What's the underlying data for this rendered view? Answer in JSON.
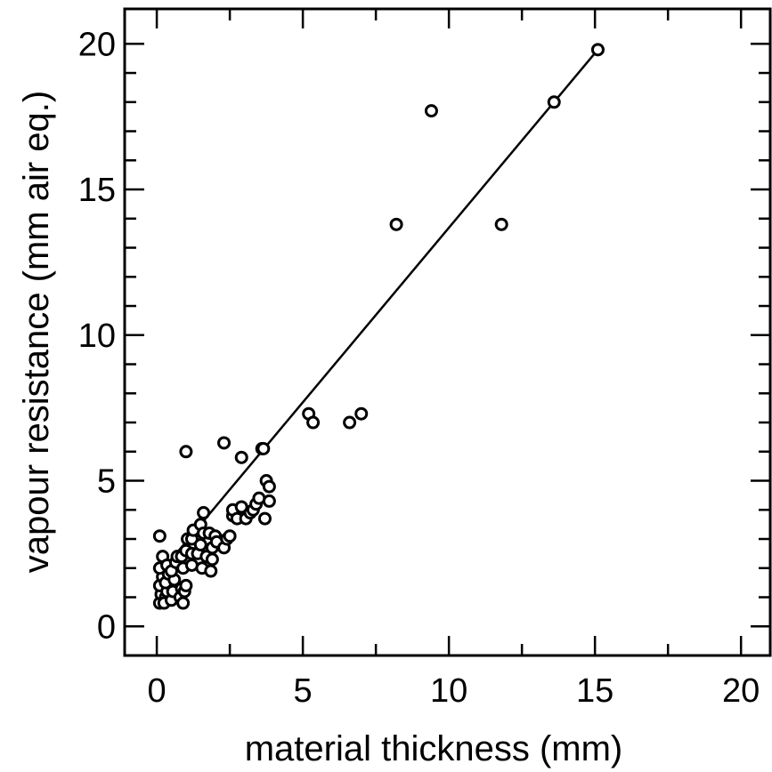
{
  "chart_data": {
    "type": "scatter",
    "xlabel": "material thickness (mm)",
    "ylabel": "vapour resistance (mm air eq.)",
    "xlim": [
      -1.1,
      21
    ],
    "ylim": [
      -1,
      21.2
    ],
    "x_ticks": [
      0,
      5,
      10,
      15,
      20
    ],
    "y_ticks": [
      0,
      5,
      10,
      15,
      20
    ],
    "x_tick_labels": [
      "0",
      "5",
      "10",
      "15",
      "20"
    ],
    "y_tick_labels": [
      "0",
      "5",
      "10",
      "15",
      "20"
    ],
    "grid": false,
    "legend": "none",
    "fit_line": {
      "x": [
        0.0,
        15.1
      ],
      "y": [
        1.7,
        19.8
      ]
    },
    "points": [
      [
        0.1,
        0.8
      ],
      [
        0.15,
        1.1
      ],
      [
        0.1,
        1.4
      ],
      [
        0.2,
        1.7
      ],
      [
        0.1,
        2.0
      ],
      [
        0.2,
        2.4
      ],
      [
        0.1,
        3.1
      ],
      [
        0.3,
        1.0
      ],
      [
        0.35,
        1.2
      ],
      [
        0.3,
        1.5
      ],
      [
        0.4,
        1.8
      ],
      [
        0.35,
        2.1
      ],
      [
        0.25,
        0.8
      ],
      [
        0.5,
        0.9
      ],
      [
        0.55,
        1.2
      ],
      [
        0.6,
        1.6
      ],
      [
        0.5,
        1.9
      ],
      [
        0.65,
        2.2
      ],
      [
        0.7,
        2.4
      ],
      [
        0.8,
        1.0
      ],
      [
        0.85,
        1.3
      ],
      [
        0.9,
        0.8
      ],
      [
        0.95,
        1.2
      ],
      [
        1.0,
        1.4
      ],
      [
        0.9,
        2.0
      ],
      [
        0.85,
        2.4
      ],
      [
        1.0,
        2.6
      ],
      [
        1.05,
        3.0
      ],
      [
        1.2,
        2.1
      ],
      [
        1.2,
        2.5
      ],
      [
        1.2,
        3.0
      ],
      [
        1.25,
        3.3
      ],
      [
        1.0,
        6.0
      ],
      [
        1.4,
        2.5
      ],
      [
        1.5,
        2.8
      ],
      [
        1.5,
        3.5
      ],
      [
        1.55,
        2.0
      ],
      [
        1.6,
        3.9
      ],
      [
        1.6,
        3.2
      ],
      [
        1.7,
        2.4
      ],
      [
        1.8,
        3.2
      ],
      [
        1.85,
        1.9
      ],
      [
        1.9,
        2.7
      ],
      [
        2.0,
        3.1
      ],
      [
        2.05,
        2.9
      ],
      [
        1.9,
        2.3
      ],
      [
        2.3,
        2.7
      ],
      [
        2.4,
        3.0
      ],
      [
        2.5,
        3.1
      ],
      [
        2.3,
        6.3
      ],
      [
        2.6,
        3.8
      ],
      [
        2.6,
        4.0
      ],
      [
        2.75,
        3.7
      ],
      [
        2.9,
        4.1
      ],
      [
        2.9,
        5.8
      ],
      [
        3.05,
        3.7
      ],
      [
        3.2,
        3.9
      ],
      [
        3.3,
        4.0
      ],
      [
        3.4,
        4.2
      ],
      [
        3.5,
        4.4
      ],
      [
        3.6,
        6.1
      ],
      [
        3.65,
        6.1
      ],
      [
        3.7,
        3.7
      ],
      [
        3.75,
        5.0
      ],
      [
        3.85,
        4.8
      ],
      [
        3.85,
        4.3
      ],
      [
        5.2,
        7.3
      ],
      [
        5.35,
        7.0
      ],
      [
        6.6,
        7.0
      ],
      [
        7.0,
        7.3
      ],
      [
        8.2,
        13.8
      ],
      [
        9.4,
        17.7
      ],
      [
        11.8,
        13.8
      ],
      [
        13.6,
        18.0
      ],
      [
        15.1,
        19.8
      ]
    ]
  }
}
